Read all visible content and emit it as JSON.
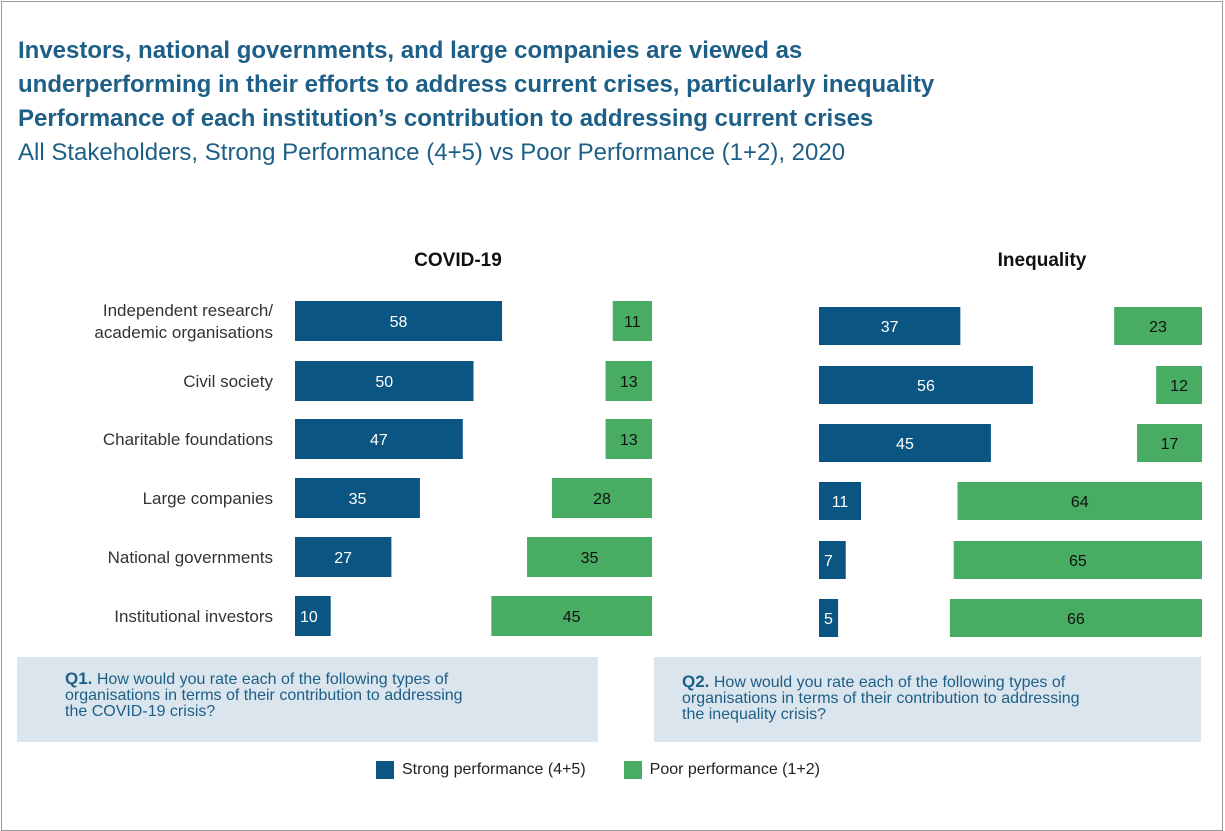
{
  "title": {
    "line1": "Investors, national governments, and large companies are viewed as",
    "line2": "underperforming in their efforts to address current crises, particularly inequality",
    "line3": "Performance of each institution’s contribution to addressing current crises",
    "subtitle": "All Stakeholders, Strong Performance (4+5) vs Poor Performance (1+2), 2020"
  },
  "colors": {
    "strong": "#0b5582",
    "poor": "#48ac62",
    "title": "#1d5f86",
    "qbox_bg": "#dbe5ee"
  },
  "questions": {
    "q1_label": "Q1.",
    "q1_line1": "How would you rate each of the following types of",
    "q1_line2": "organisations in terms of their contribution to addressing",
    "q1_line3": "the COVID-19 crisis?",
    "q2_label": "Q2.",
    "q2_line1": "How would you rate each of the following types of",
    "q2_line2": "organisations in terms of their contribution to addressing",
    "q2_line3": "the inequality crisis?"
  },
  "legend": {
    "strong": "Strong performance (4+5)",
    "poor": "Poor performance (1+2)"
  },
  "chart_data": [
    {
      "type": "bar",
      "title": "COVID-19",
      "categories": [
        [
          "Independent research/",
          "academic organisations"
        ],
        [
          "Civil society"
        ],
        [
          "Charitable foundations"
        ],
        [
          "Large companies"
        ],
        [
          "National governments"
        ],
        [
          "Institutional investors"
        ]
      ],
      "series": [
        {
          "name": "Strong performance (4+5)",
          "values": [
            58,
            50,
            47,
            35,
            27,
            10
          ]
        },
        {
          "name": "Poor performance (1+2)",
          "values": [
            11,
            13,
            13,
            28,
            35,
            45
          ]
        }
      ]
    },
    {
      "type": "bar",
      "title": "Inequality",
      "categories": [
        [
          "Independent research/",
          "academic organisations"
        ],
        [
          "Civil society"
        ],
        [
          "Charitable foundations"
        ],
        [
          "Large companies"
        ],
        [
          "National governments"
        ],
        [
          "Institutional investors"
        ]
      ],
      "series": [
        {
          "name": "Strong performance (4+5)",
          "values": [
            37,
            56,
            45,
            11,
            7,
            5
          ]
        },
        {
          "name": "Poor performance (1+2)",
          "values": [
            23,
            12,
            17,
            64,
            65,
            66
          ]
        }
      ]
    }
  ]
}
